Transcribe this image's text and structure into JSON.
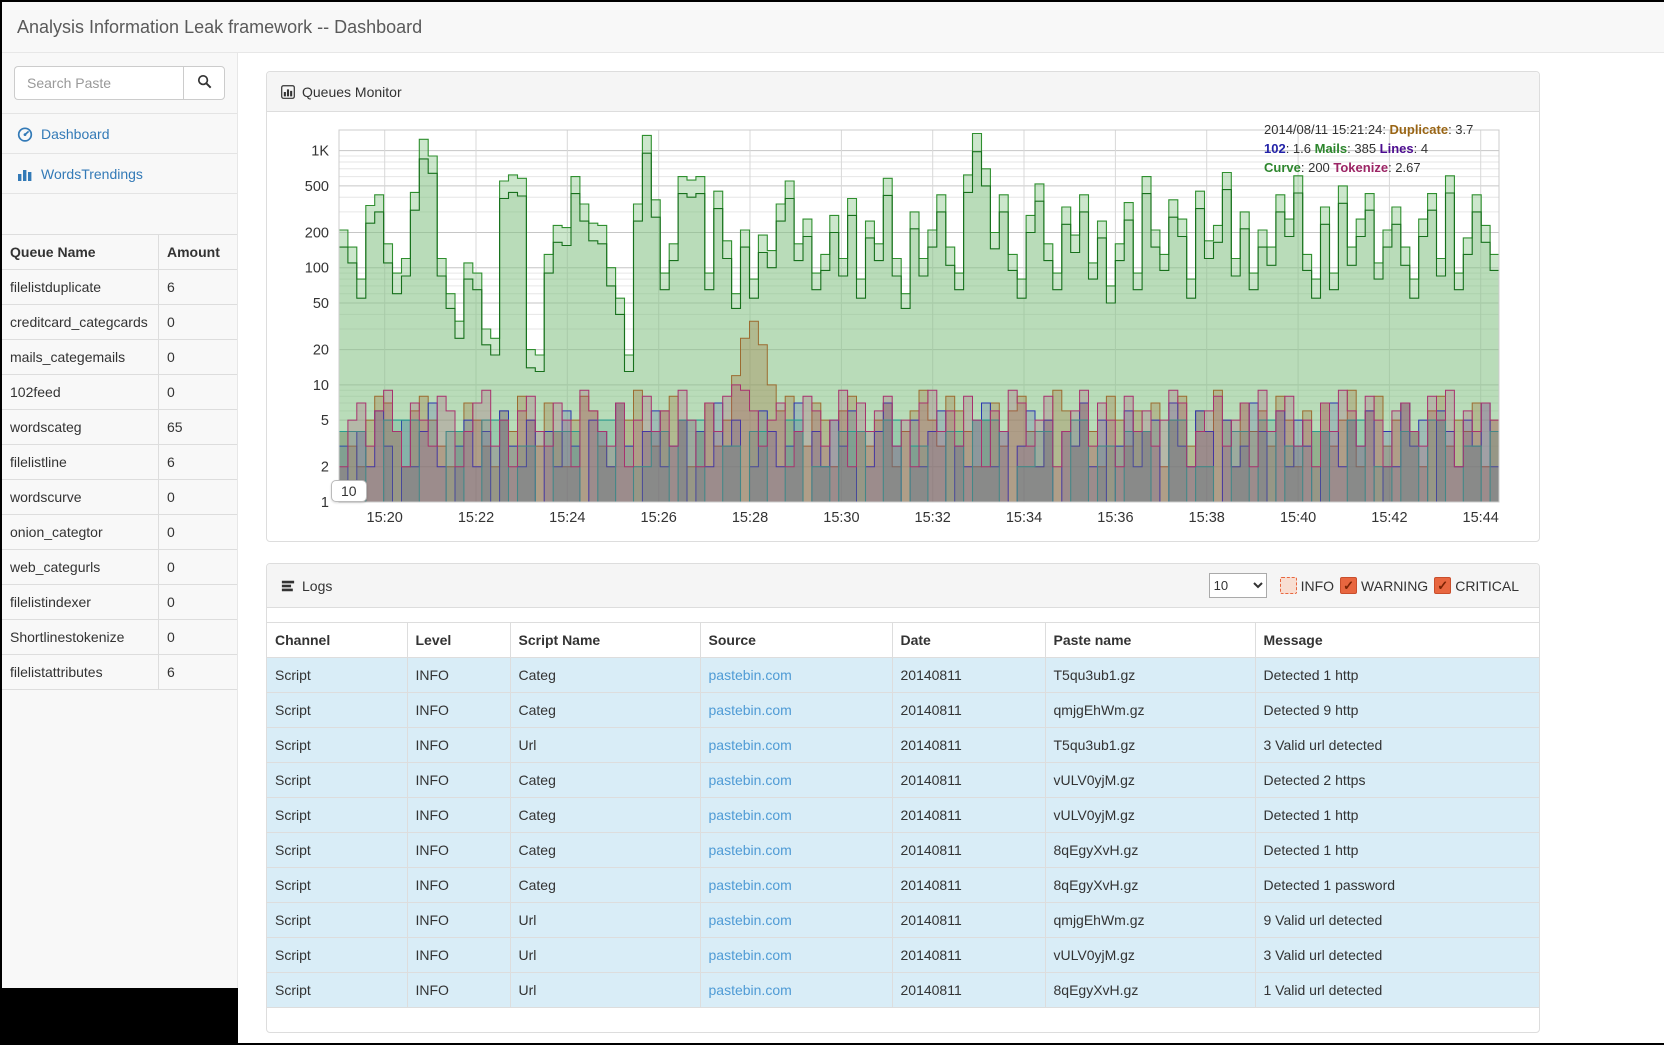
{
  "navbar": {
    "title": "Analysis Information Leak framework -- Dashboard"
  },
  "sidebar": {
    "search": {
      "placeholder": "Search Paste",
      "value": ""
    },
    "nav": [
      {
        "label": "Dashboard",
        "icon": "dashboard-icon"
      },
      {
        "label": "WordsTrendings",
        "icon": "bar-chart-icon"
      }
    ],
    "queue_table": {
      "headers": [
        "Queue Name",
        "Amount"
      ],
      "rows": [
        [
          "filelistduplicate",
          "6"
        ],
        [
          "creditcard_categcards",
          "0"
        ],
        [
          "mails_categemails",
          "0"
        ],
        [
          "102feed",
          "0"
        ],
        [
          "wordscateg",
          "65"
        ],
        [
          "filelistline",
          "6"
        ],
        [
          "wordscurve",
          "0"
        ],
        [
          "onion_categtor",
          "0"
        ],
        [
          "web_categurls",
          "0"
        ],
        [
          "filelistindexer",
          "0"
        ],
        [
          "Shortlinestokenize",
          "0"
        ],
        [
          "filelistattributes",
          "6"
        ]
      ]
    }
  },
  "queues_panel": {
    "title": "Queues Monitor"
  },
  "chart_data": {
    "type": "area",
    "title": "Queues Monitor",
    "y_scale": "log",
    "ylim": [
      1,
      1500
    ],
    "grid": true,
    "tooltip": "10",
    "x_domain_minutes": [
      19,
      44.4
    ],
    "x_ticks": [
      {
        "label": "15:20",
        "m": 20
      },
      {
        "label": "15:22",
        "m": 22
      },
      {
        "label": "15:24",
        "m": 24
      },
      {
        "label": "15:26",
        "m": 26
      },
      {
        "label": "15:28",
        "m": 28
      },
      {
        "label": "15:30",
        "m": 30
      },
      {
        "label": "15:32",
        "m": 32
      },
      {
        "label": "15:34",
        "m": 34
      },
      {
        "label": "15:36",
        "m": 36
      },
      {
        "label": "15:38",
        "m": 38
      },
      {
        "label": "15:40",
        "m": 40
      },
      {
        "label": "15:42",
        "m": 42
      },
      {
        "label": "15:44",
        "m": 44
      }
    ],
    "y_ticks": [
      {
        "label": "1K",
        "v": 1000
      },
      {
        "label": "500",
        "v": 500
      },
      {
        "label": "200",
        "v": 200
      },
      {
        "label": "100",
        "v": 100
      },
      {
        "label": "50",
        "v": 50
      },
      {
        "label": "20",
        "v": 20
      },
      {
        "label": "10",
        "v": 10
      },
      {
        "label": "5",
        "v": 5
      },
      {
        "label": "2",
        "v": 2
      },
      {
        "label": "1",
        "v": 1
      }
    ],
    "legend": [
      [
        {
          "t": "2014/08/11 15:21:24: ",
          "c": "#333333",
          "b": false
        },
        {
          "t": "Duplicate",
          "c": "#996515",
          "b": true
        },
        {
          "t": ": 3.7",
          "c": "#333333",
          "b": false
        }
      ],
      [
        {
          "t": "102",
          "c": "#2323a8",
          "b": true
        },
        {
          "t": ": 1.6 ",
          "c": "#333333",
          "b": false
        },
        {
          "t": "Mails",
          "c": "#2d862d",
          "b": true
        },
        {
          "t": ": 385 ",
          "c": "#333333",
          "b": false
        },
        {
          "t": "Lines",
          "c": "#4c0c8f",
          "b": true
        },
        {
          "t": ": 4",
          "c": "#333333",
          "b": false
        }
      ],
      [
        {
          "t": "Curve",
          "c": "#2d862d",
          "b": true
        },
        {
          "t": ": 200 ",
          "c": "#333333",
          "b": false
        },
        {
          "t": "Tokenize",
          "c": "#9c2565",
          "b": true
        },
        {
          "t": ": 2.67",
          "c": "#333333",
          "b": false
        }
      ]
    ],
    "series": [
      {
        "name": "Mails",
        "stroke": "#2f8f2f",
        "fill": "rgba(143,202,143,0.45)",
        "sw": 1.1,
        "values": [
          210,
          150,
          80,
          340,
          420,
          160,
          90,
          120,
          440,
          1250,
          900,
          120,
          60,
          35,
          110,
          90,
          30,
          25,
          550,
          620,
          580,
          20,
          18,
          130,
          230,
          220,
          600,
          350,
          240,
          230,
          100,
          55,
          18,
          350,
          1350,
          380,
          90,
          160,
          600,
          560,
          600,
          90,
          450,
          170,
          60,
          210,
          80,
          190,
          140,
          350,
          550,
          160,
          260,
          90,
          130,
          280,
          120,
          390,
          80,
          250,
          160,
          580,
          120,
          60,
          300,
          120,
          210,
          420,
          150,
          90,
          620,
          1400,
          700,
          200,
          420,
          130,
          80,
          280,
          520,
          160,
          90,
          330,
          190,
          420,
          110,
          250,
          70,
          160,
          360,
          90,
          600,
          210,
          130,
          380,
          260,
          80,
          450,
          170,
          230,
          650,
          120,
          300,
          90,
          210,
          150,
          420,
          260,
          610,
          130,
          80,
          330,
          90,
          500,
          150,
          260,
          430,
          110,
          210,
          330,
          150,
          80,
          260,
          430,
          120,
          610,
          90,
          180,
          420,
          230,
          130
        ]
      },
      {
        "name": "Curve",
        "stroke": "#17701c",
        "fill": "rgba(120,180,120,0.22)",
        "sw": 1.1,
        "values": [
          150,
          110,
          55,
          240,
          300,
          110,
          60,
          85,
          310,
          850,
          640,
          85,
          45,
          25,
          80,
          65,
          22,
          18,
          390,
          440,
          410,
          14,
          13,
          90,
          165,
          155,
          430,
          250,
          170,
          160,
          70,
          40,
          13,
          250,
          950,
          270,
          65,
          115,
          430,
          400,
          430,
          65,
          320,
          120,
          45,
          150,
          55,
          135,
          100,
          250,
          390,
          115,
          185,
          65,
          95,
          200,
          85,
          280,
          55,
          180,
          115,
          415,
          85,
          45,
          215,
          85,
          150,
          300,
          105,
          65,
          440,
          980,
          500,
          145,
          300,
          95,
          55,
          200,
          370,
          115,
          65,
          235,
          135,
          300,
          80,
          180,
          50,
          115,
          255,
          65,
          430,
          150,
          95,
          270,
          185,
          55,
          320,
          120,
          165,
          465,
          85,
          215,
          65,
          150,
          105,
          300,
          185,
          435,
          95,
          55,
          235,
          65,
          355,
          105,
          185,
          310,
          80,
          150,
          235,
          105,
          55,
          185,
          310,
          85,
          435,
          65,
          130,
          300,
          165,
          95
        ]
      },
      {
        "name": "Duplicate",
        "stroke": "#9c6b30",
        "fill": "rgba(160,110,50,0.30)",
        "sw": 1,
        "values": [
          4,
          3,
          2,
          5,
          8,
          7,
          4,
          2,
          6,
          8,
          5,
          3,
          2,
          4,
          7,
          5,
          3,
          2,
          6,
          4,
          8,
          5,
          3,
          7,
          4,
          2,
          5,
          8,
          6,
          3,
          2,
          7,
          5,
          9,
          4,
          3,
          6,
          8,
          5,
          2,
          4,
          7,
          3,
          5,
          12,
          25,
          35,
          22,
          10,
          6,
          8,
          4,
          3,
          7,
          5,
          2,
          6,
          8,
          4,
          3,
          5,
          7,
          2,
          4,
          6,
          9,
          5,
          3,
          8,
          6,
          4,
          2,
          5,
          7,
          3,
          6,
          8,
          4,
          2,
          5,
          9,
          6,
          3,
          7,
          4,
          2,
          8,
          5,
          3,
          6,
          4,
          7,
          2,
          5,
          8,
          3,
          6,
          4,
          9,
          5,
          2,
          7,
          4,
          6,
          3,
          8,
          5,
          2,
          6,
          4,
          7,
          3,
          5,
          9,
          2,
          6,
          8,
          3,
          5,
          7,
          4,
          2,
          6,
          8,
          3,
          5,
          4,
          7,
          2,
          5
        ]
      },
      {
        "name": "102",
        "stroke": "#2a35b0",
        "fill": "rgba(70,80,170,0.22)",
        "sw": 1,
        "values": [
          3,
          1,
          4,
          2,
          6,
          3,
          1,
          5,
          2,
          4,
          7,
          2,
          1,
          3,
          5,
          2,
          4,
          1,
          6,
          3,
          2,
          5,
          1,
          4,
          2,
          6,
          3,
          1,
          5,
          4,
          2,
          7,
          3,
          1,
          4,
          6,
          2,
          3,
          5,
          1,
          4,
          2,
          7,
          3,
          5,
          1,
          2,
          6,
          4,
          2,
          3,
          7,
          1,
          4,
          2,
          5,
          3,
          6,
          1,
          2,
          4,
          7,
          3,
          1,
          5,
          2,
          4,
          6,
          1,
          3,
          2,
          5,
          7,
          2,
          4,
          1,
          3,
          6,
          2,
          5,
          1,
          4,
          3,
          7,
          2,
          5,
          1,
          3,
          6,
          2,
          4,
          5,
          1,
          7,
          3,
          2,
          6,
          4,
          1,
          5,
          2,
          3,
          7,
          4,
          1,
          6,
          2,
          5,
          3,
          1,
          4,
          7,
          2,
          5,
          3,
          6,
          1,
          4,
          2,
          7,
          3,
          5,
          1,
          6,
          4,
          2,
          5,
          3,
          7,
          2
        ]
      },
      {
        "name": "Lines",
        "stroke": "#2a9d8f",
        "fill": "rgba(60,150,135,0.25)",
        "sw": 1.1,
        "values": [
          4,
          4,
          4,
          1,
          1,
          5,
          5,
          5,
          5,
          1,
          1,
          1,
          4,
          4,
          1,
          1,
          5,
          5,
          5,
          1,
          3,
          3,
          1,
          1,
          4,
          4,
          4,
          1,
          1,
          5,
          5,
          1,
          1,
          2,
          2,
          4,
          4,
          1,
          5,
          5,
          5,
          1,
          1,
          3,
          3,
          1,
          4,
          4,
          1,
          1,
          5,
          5,
          1,
          2,
          2,
          1,
          4,
          4,
          4,
          1,
          1,
          5,
          5,
          1,
          3,
          3,
          1,
          1,
          4,
          4,
          1,
          5,
          5,
          5,
          1,
          1,
          2,
          2,
          4,
          4,
          1,
          1,
          5,
          5,
          1,
          3,
          3,
          1,
          4,
          4,
          4,
          1,
          1,
          5,
          5,
          1,
          2,
          2,
          1,
          1,
          4,
          4,
          1,
          5,
          5,
          1,
          3,
          3,
          1,
          4,
          4,
          1,
          1,
          5,
          5,
          1,
          2,
          2,
          1,
          4,
          4,
          1,
          5,
          5,
          1,
          1,
          3,
          3,
          1,
          4
        ]
      },
      {
        "name": "Tokenize",
        "stroke": "#a8326e",
        "fill": "rgba(170,60,110,0.22)",
        "sw": 1,
        "values": [
          2,
          5,
          7,
          3,
          6,
          9,
          4,
          2,
          7,
          5,
          3,
          8,
          6,
          2,
          4,
          7,
          9,
          3,
          5,
          2,
          6,
          8,
          4,
          3,
          7,
          5,
          2,
          9,
          6,
          4,
          3,
          7,
          2,
          5,
          8,
          4,
          6,
          3,
          9,
          5,
          2,
          7,
          4,
          8,
          10,
          9,
          6,
          3,
          5,
          7,
          2,
          4,
          8,
          6,
          3,
          5,
          9,
          2,
          7,
          4,
          6,
          8,
          3,
          5,
          2,
          7,
          9,
          4,
          6,
          3,
          8,
          5,
          2,
          6,
          4,
          9,
          7,
          3,
          5,
          8,
          2,
          4,
          6,
          9,
          3,
          7,
          5,
          2,
          8,
          4,
          6,
          3,
          5,
          9,
          7,
          2,
          4,
          6,
          8,
          3,
          5,
          7,
          2,
          9,
          4,
          6,
          8,
          3,
          5,
          2,
          7,
          4,
          9,
          6,
          3,
          8,
          5,
          2,
          6,
          7,
          4,
          3,
          8,
          5,
          9,
          2,
          6,
          4,
          7,
          5
        ]
      }
    ]
  },
  "logs_panel": {
    "title": "Logs",
    "page_size": "10",
    "filters": [
      {
        "label": "INFO",
        "checked": false
      },
      {
        "label": "WARNING",
        "checked": true
      },
      {
        "label": "CRITICAL",
        "checked": true
      }
    ],
    "table": {
      "headers": [
        "Channel",
        "Level",
        "Script Name",
        "Source",
        "Date",
        "Paste name",
        "Message"
      ],
      "rows": [
        [
          "Script",
          "INFO",
          "Categ",
          "pastebin.com",
          "20140811",
          "T5qu3ub1.gz",
          "Detected 1 http"
        ],
        [
          "Script",
          "INFO",
          "Categ",
          "pastebin.com",
          "20140811",
          "qmjgEhWm.gz",
          "Detected 9 http"
        ],
        [
          "Script",
          "INFO",
          "Url",
          "pastebin.com",
          "20140811",
          "T5qu3ub1.gz",
          "3 Valid url detected"
        ],
        [
          "Script",
          "INFO",
          "Categ",
          "pastebin.com",
          "20140811",
          "vULV0yjM.gz",
          "Detected 2 https"
        ],
        [
          "Script",
          "INFO",
          "Categ",
          "pastebin.com",
          "20140811",
          "vULV0yjM.gz",
          "Detected 1 http"
        ],
        [
          "Script",
          "INFO",
          "Categ",
          "pastebin.com",
          "20140811",
          "8qEgyXvH.gz",
          "Detected 1 http"
        ],
        [
          "Script",
          "INFO",
          "Categ",
          "pastebin.com",
          "20140811",
          "8qEgyXvH.gz",
          "Detected 1 password"
        ],
        [
          "Script",
          "INFO",
          "Url",
          "pastebin.com",
          "20140811",
          "qmjgEhWm.gz",
          "9 Valid url detected"
        ],
        [
          "Script",
          "INFO",
          "Url",
          "pastebin.com",
          "20140811",
          "vULV0yjM.gz",
          "3 Valid url detected"
        ],
        [
          "Script",
          "INFO",
          "Url",
          "pastebin.com",
          "20140811",
          "8qEgyXvH.gz",
          "1 Valid url detected"
        ]
      ]
    }
  }
}
